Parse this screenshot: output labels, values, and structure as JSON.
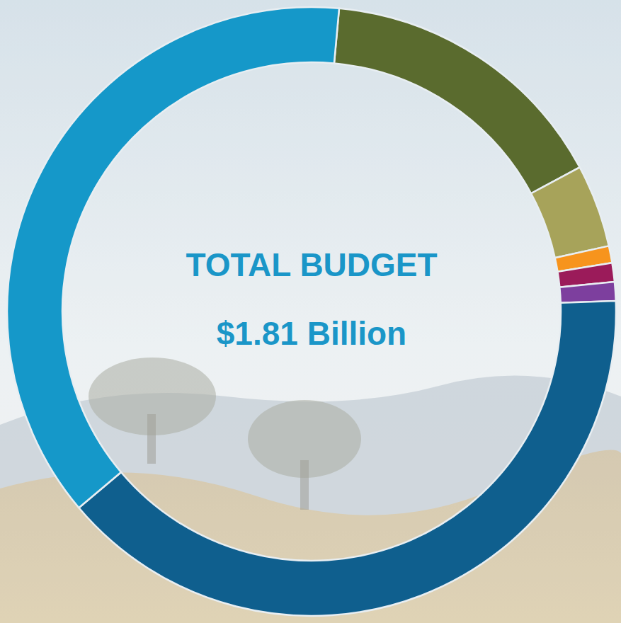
{
  "chart_data": {
    "type": "donut",
    "title": "TOTAL BUDGET",
    "subtitle": "$1.81 Billion",
    "values": [
      15.7,
      4.4,
      0.9,
      1.0,
      1.0,
      39.4,
      37.6
    ],
    "colors": [
      "#5a6b2e",
      "#a7a35a",
      "#f7941d",
      "#9b1b5a",
      "#7d3f9e",
      "#0f5f8e",
      "#1598c9"
    ]
  }
}
